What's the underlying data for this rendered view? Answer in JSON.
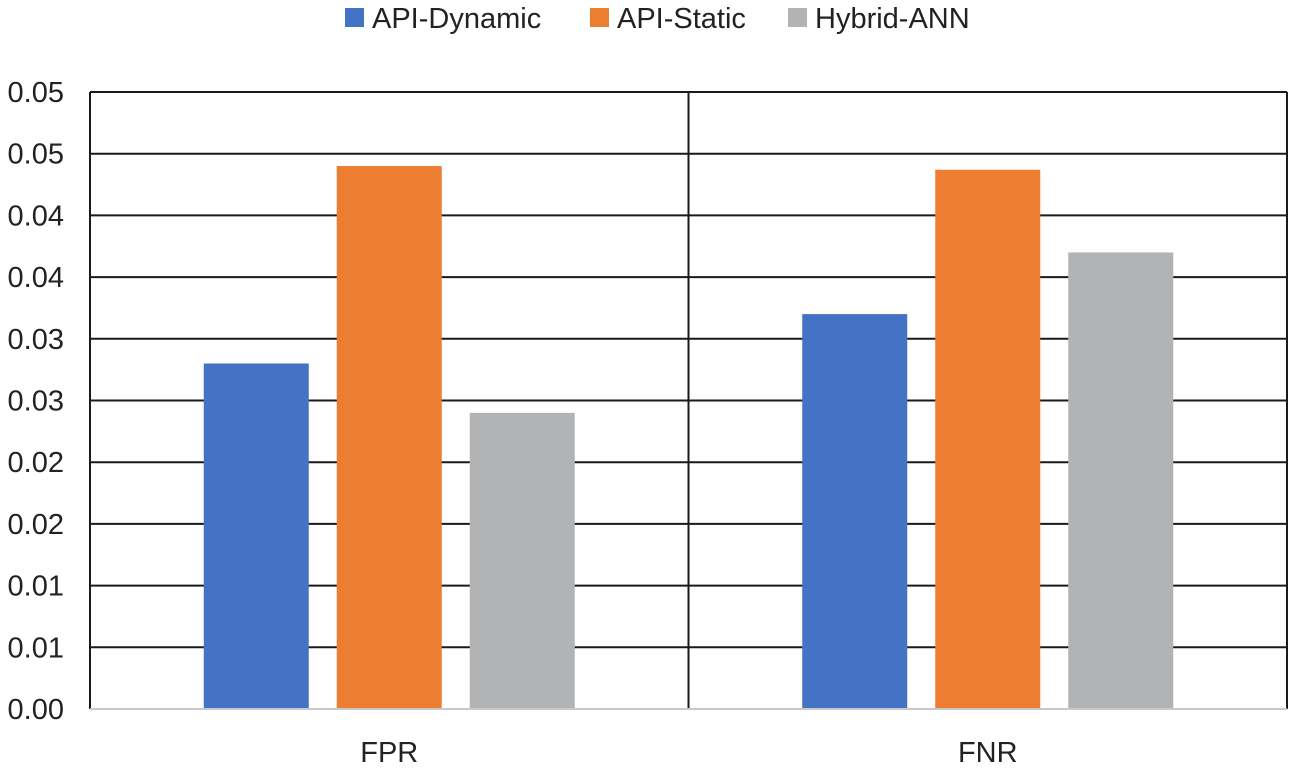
{
  "chart_data": {
    "type": "bar",
    "categories": [
      "FPR",
      "FNR"
    ],
    "series": [
      {
        "name": "API-Dynamic",
        "color": "#4472C4",
        "values": [
          0.028,
          0.032
        ]
      },
      {
        "name": "API-Static",
        "color": "#ED7D31",
        "values": [
          0.044,
          0.0437
        ]
      },
      {
        "name": "Hybrid-ANN",
        "color": "#B2B3B5",
        "values": [
          0.024,
          0.037
        ]
      }
    ],
    "y_tick_labels": [
      "0.00",
      "0.01",
      "0.01",
      "0.02",
      "0.02",
      "0.03",
      "0.03",
      "0.04",
      "0.04",
      "0.05",
      "0.05"
    ],
    "ylim": [
      0,
      0.05
    ],
    "y_step": 0.005,
    "grid": true,
    "category_dividers": true,
    "legend_position": "top-center",
    "title": "",
    "xlabel": "",
    "ylabel": ""
  }
}
